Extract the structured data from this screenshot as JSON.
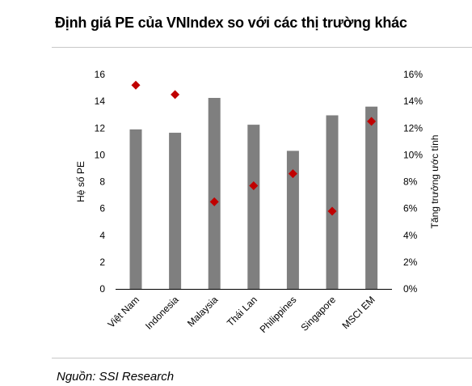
{
  "title": "Định giá PE của VNIndex so với các thị trường khác",
  "source": "Nguồn: SSI Research",
  "colors": {
    "bar": "#7f7f7f",
    "marker": "#c00000",
    "rule": "#c8c8c8"
  },
  "chart_data": {
    "type": "bar",
    "categories": [
      "Việt Nam",
      "Indonesia",
      "Malaysia",
      "Thái Lan",
      "Philippines",
      "Singapore",
      "MSCI EM"
    ],
    "series": [
      {
        "axis": "left",
        "type": "bar",
        "values": [
          11.9,
          11.65,
          14.25,
          12.25,
          10.3,
          12.95,
          13.6
        ]
      },
      {
        "axis": "right",
        "type": "scatter",
        "marker": "diamond",
        "values": [
          0.152,
          0.145,
          0.065,
          0.077,
          0.086,
          0.058,
          0.125
        ]
      }
    ],
    "ylabel": "Hệ số PE",
    "y2label": "Tăng trưởng ước tính",
    "ylim": [
      0,
      16
    ],
    "y2lim": [
      0,
      0.16
    ],
    "yticks": [
      "0",
      "2",
      "4",
      "6",
      "8",
      "10",
      "12",
      "14",
      "16"
    ],
    "y2ticks": [
      "0%",
      "2%",
      "4%",
      "6%",
      "8%",
      "10%",
      "12%",
      "14%",
      "16%"
    ],
    "grid": false,
    "legend": "none"
  }
}
